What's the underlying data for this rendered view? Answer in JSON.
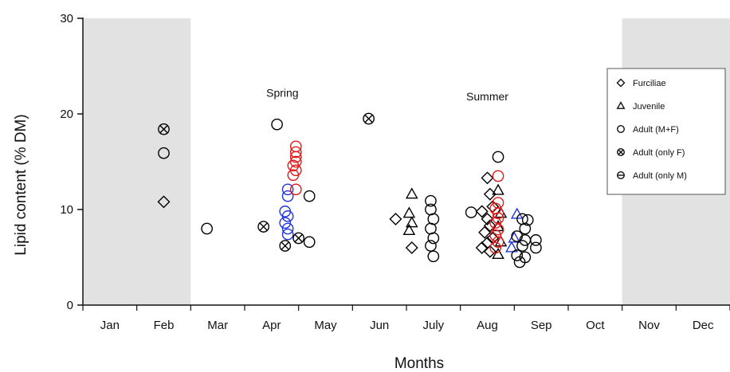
{
  "chart_data": {
    "type": "scatter",
    "xlabel": "Months",
    "ylabel": "Lipid content (% DM)",
    "categories": [
      "Jan",
      "Feb",
      "Mar",
      "Apr",
      "May",
      "Jun",
      "July",
      "Aug",
      "Sep",
      "Oct",
      "Nov",
      "Dec"
    ],
    "ylim": [
      0,
      30
    ],
    "yticks": [
      0,
      10,
      20,
      30
    ],
    "grid": false,
    "legend_position": "top-right",
    "shaded_periods": [
      {
        "from": "Jan",
        "to": "Feb",
        "color": "#e2e2e2"
      },
      {
        "from": "Nov",
        "to": "Dec",
        "color": "#e2e2e2"
      }
    ],
    "annotations": [
      {
        "text": "Spring",
        "x": 3.7,
        "y": 21.8
      },
      {
        "text": "Summer",
        "x": 7.5,
        "y": 21.4
      }
    ],
    "legend": [
      {
        "label": "Furciliae",
        "marker": "diamond"
      },
      {
        "label": "Juvenile",
        "marker": "triangle"
      },
      {
        "label": "Adult (M+F)",
        "marker": "circle"
      },
      {
        "label": "Adult (only F)",
        "marker": "circle-x"
      },
      {
        "label": "Adult (only M)",
        "marker": "circle-minus"
      }
    ],
    "series": [
      {
        "name": "Furciliae",
        "marker": "diamond",
        "points": [
          {
            "x": 1.5,
            "y": 10.8
          },
          {
            "x": 5.8,
            "y": 9.0
          },
          {
            "x": 6.1,
            "y": 6.0
          },
          {
            "x": 7.5,
            "y": 13.3
          },
          {
            "x": 7.55,
            "y": 11.6
          },
          {
            "x": 7.6,
            "y": 10.3
          },
          {
            "x": 7.4,
            "y": 9.8
          },
          {
            "x": 7.5,
            "y": 9.0
          },
          {
            "x": 7.55,
            "y": 8.3
          },
          {
            "x": 7.45,
            "y": 7.6
          },
          {
            "x": 7.6,
            "y": 7.0
          },
          {
            "x": 7.5,
            "y": 6.5
          },
          {
            "x": 7.4,
            "y": 6.0
          },
          {
            "x": 7.55,
            "y": 5.6
          }
        ]
      },
      {
        "name": "Juvenile",
        "marker": "triangle",
        "color": "#000000",
        "points": [
          {
            "x": 6.1,
            "y": 11.6
          },
          {
            "x": 6.05,
            "y": 9.6
          },
          {
            "x": 6.1,
            "y": 8.6
          },
          {
            "x": 6.05,
            "y": 7.8
          },
          {
            "x": 7.7,
            "y": 12.0
          },
          {
            "x": 7.75,
            "y": 9.6
          },
          {
            "x": 7.7,
            "y": 8.2
          },
          {
            "x": 7.75,
            "y": 6.6
          },
          {
            "x": 7.7,
            "y": 5.3
          }
        ]
      },
      {
        "name": "Juvenile",
        "marker": "triangle",
        "color": "#2233dd",
        "points": [
          {
            "x": 8.05,
            "y": 9.5
          },
          {
            "x": 8.0,
            "y": 7.0
          },
          {
            "x": 7.95,
            "y": 6.0
          }
        ]
      },
      {
        "name": "Adult (M+F)",
        "marker": "circle",
        "color": "#000000",
        "points": [
          {
            "x": 1.5,
            "y": 15.9
          },
          {
            "x": 2.3,
            "y": 8.0
          },
          {
            "x": 3.6,
            "y": 18.9
          },
          {
            "x": 4.2,
            "y": 11.4
          },
          {
            "x": 4.2,
            "y": 6.6
          },
          {
            "x": 6.45,
            "y": 10.9
          },
          {
            "x": 6.45,
            "y": 10.0
          },
          {
            "x": 6.5,
            "y": 9.0
          },
          {
            "x": 6.45,
            "y": 8.0
          },
          {
            "x": 6.5,
            "y": 7.0
          },
          {
            "x": 6.45,
            "y": 6.2
          },
          {
            "x": 6.5,
            "y": 5.1
          },
          {
            "x": 7.2,
            "y": 9.7
          },
          {
            "x": 7.7,
            "y": 15.5
          },
          {
            "x": 8.15,
            "y": 9.0
          },
          {
            "x": 8.25,
            "y": 8.9
          },
          {
            "x": 8.2,
            "y": 8.0
          },
          {
            "x": 8.05,
            "y": 7.2
          },
          {
            "x": 8.2,
            "y": 6.8
          },
          {
            "x": 8.4,
            "y": 6.8
          },
          {
            "x": 8.4,
            "y": 6.0
          },
          {
            "x": 8.15,
            "y": 6.2
          },
          {
            "x": 8.05,
            "y": 5.2
          },
          {
            "x": 8.2,
            "y": 5.0
          },
          {
            "x": 8.1,
            "y": 4.5
          }
        ]
      },
      {
        "name": "Adult (M+F)",
        "marker": "circle",
        "color": "#2233dd",
        "points": [
          {
            "x": 3.8,
            "y": 12.1
          },
          {
            "x": 3.8,
            "y": 11.4
          },
          {
            "x": 3.75,
            "y": 9.8
          },
          {
            "x": 3.8,
            "y": 9.3
          },
          {
            "x": 3.75,
            "y": 8.6
          },
          {
            "x": 3.8,
            "y": 8.0
          },
          {
            "x": 3.8,
            "y": 7.4
          }
        ]
      },
      {
        "name": "Adult (M+F)",
        "marker": "circle",
        "color": "#e01a1a",
        "points": [
          {
            "x": 3.95,
            "y": 16.6
          },
          {
            "x": 3.95,
            "y": 16.0
          },
          {
            "x": 3.95,
            "y": 15.5
          },
          {
            "x": 3.95,
            "y": 15.0
          },
          {
            "x": 3.9,
            "y": 14.6
          },
          {
            "x": 3.95,
            "y": 14.1
          },
          {
            "x": 3.9,
            "y": 13.6
          },
          {
            "x": 3.95,
            "y": 12.1
          },
          {
            "x": 7.7,
            "y": 13.5
          },
          {
            "x": 7.7,
            "y": 10.7
          },
          {
            "x": 7.65,
            "y": 10.1
          },
          {
            "x": 7.7,
            "y": 9.6
          },
          {
            "x": 7.7,
            "y": 9.1
          },
          {
            "x": 7.65,
            "y": 8.6
          },
          {
            "x": 7.7,
            "y": 7.9
          },
          {
            "x": 7.65,
            "y": 7.3
          },
          {
            "x": 7.7,
            "y": 6.6
          },
          {
            "x": 7.65,
            "y": 6.0
          }
        ]
      },
      {
        "name": "Adult (only F)",
        "marker": "circle-x",
        "points": [
          {
            "x": 1.5,
            "y": 18.4
          },
          {
            "x": 3.35,
            "y": 8.2
          },
          {
            "x": 3.75,
            "y": 6.2
          },
          {
            "x": 4.0,
            "y": 7.0
          },
          {
            "x": 5.3,
            "y": 19.5
          }
        ]
      },
      {
        "name": "Adult (only M)",
        "marker": "circle-minus",
        "points": []
      }
    ]
  }
}
